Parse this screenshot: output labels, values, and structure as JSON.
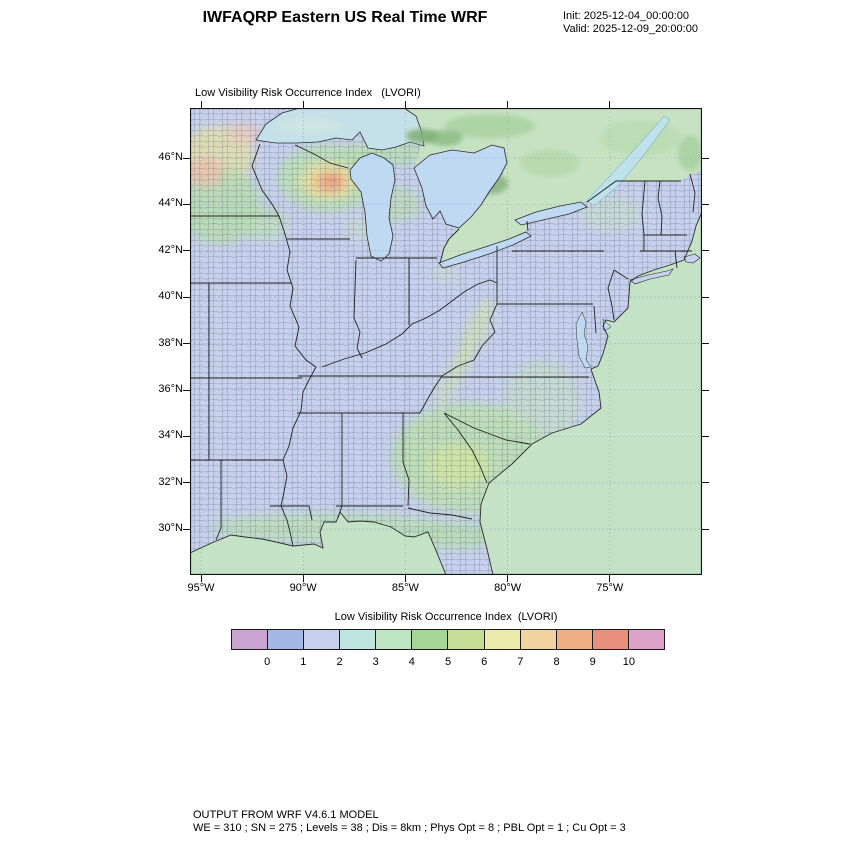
{
  "header": {
    "title": "IWFAQRP Eastern US Real Time WRF",
    "init_line": "Init: 2025-12-04_00:00:00",
    "valid_line": "Valid: 2025-12-09_20:00:00"
  },
  "map": {
    "title": "Low Visibility Risk Occurrence Index   (LVORI)",
    "lat_labels": [
      "46°N",
      "44°N",
      "42°N",
      "40°N",
      "38°N",
      "36°N",
      "34°N",
      "32°N",
      "30°N"
    ],
    "lon_labels": [
      "95°W",
      "90°W",
      "85°W",
      "80°W",
      "75°W"
    ]
  },
  "colorbar": {
    "label": "Low Visibility Risk Occurrence Index  (LVORI)",
    "tick_labels": [
      "0",
      "1",
      "2",
      "3",
      "4",
      "5",
      "6",
      "7",
      "8",
      "9",
      "10"
    ],
    "colors": [
      "#C9A4D0",
      "#A3B8E6",
      "#C6D0EE",
      "#BEE5DE",
      "#C0E5C2",
      "#A5D695",
      "#C5DD97",
      "#EDEBAC",
      "#F1D3A2",
      "#EFAF87",
      "#E88F7E",
      "#DCA2C8"
    ]
  },
  "palette": {
    "land": "#C7D0ED",
    "ocean": "#C3E2C6",
    "lake": "#BFD9F2",
    "superior": "#C4E0E8",
    "canada": "#C7E2C3",
    "border": "#222222",
    "grid": "#7A8FB5"
  },
  "footer": {
    "line1": "OUTPUT FROM WRF V4.6.1 MODEL",
    "line2": "WE = 310 ; SN = 275 ; Levels = 38 ; Dis = 8km ; Phys Opt = 8 ; PBL Opt = 1 ; Cu Opt = 3"
  }
}
